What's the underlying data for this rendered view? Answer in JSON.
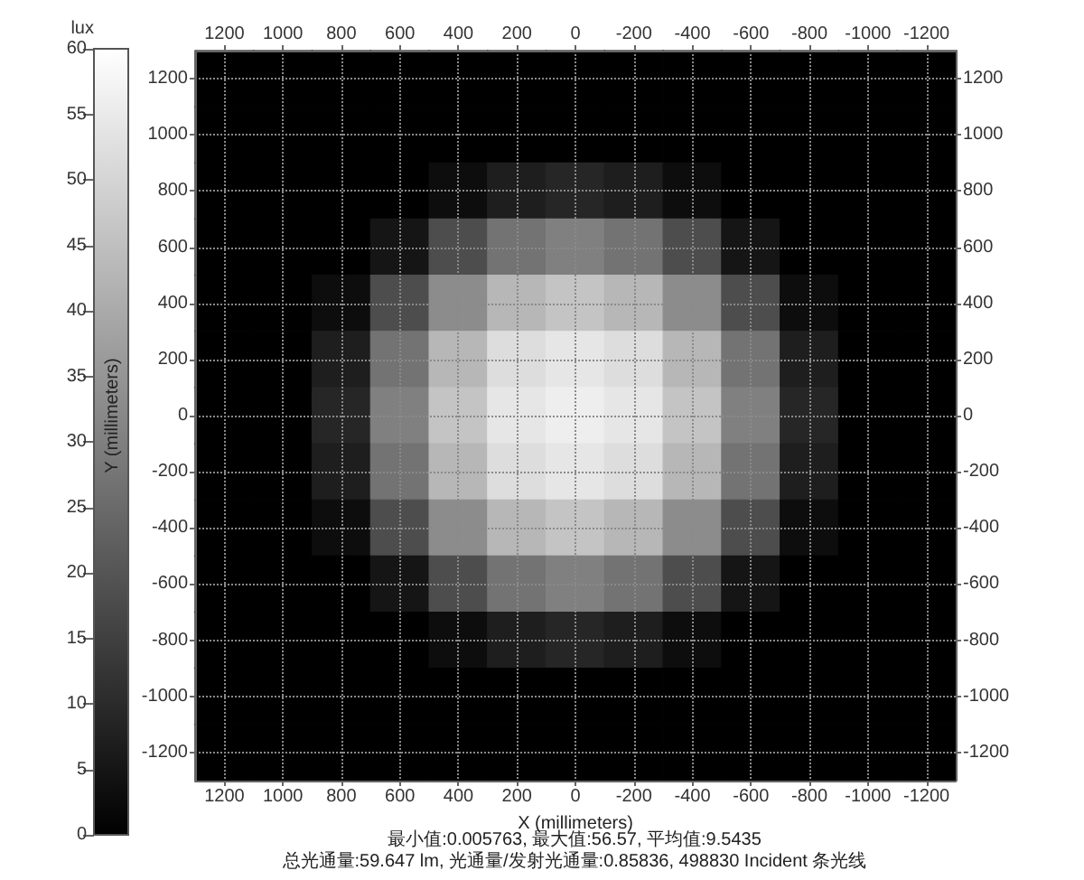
{
  "chart_data": {
    "type": "heatmap",
    "xlabel": "X (millimeters)",
    "ylabel": "Y (millimeters)",
    "clabel": "lux",
    "annotations": [
      "最小值:0.005763, 最大值:56.57, 平均值:9.5435",
      "总光通量:59.647 lm, 光通量/发射光通量:0.85836, 498830 Incident 条光线"
    ],
    "categories": [
      "1200",
      "1000",
      "800",
      "600",
      "400",
      "200",
      "0",
      "-200",
      "-400",
      "-600",
      "-800",
      "-1000",
      "-1200"
    ],
    "y_categories": [
      "1200",
      "1000",
      "800",
      "600",
      "400",
      "200",
      "0",
      "-200",
      "-400",
      "-600",
      "-800",
      "-1000",
      "-1200"
    ],
    "y2_categories": [
      "1200",
      "1000",
      "800",
      "600",
      "400",
      "200",
      "0",
      "-200",
      "-400",
      "-600",
      "-800",
      "-1000",
      "-1200"
    ],
    "clim": [
      0,
      60
    ],
    "cticks": [
      0,
      5,
      10,
      15,
      20,
      25,
      30,
      35,
      40,
      45,
      50,
      55,
      60
    ],
    "grid": true,
    "cells": [
      [
        0,
        0,
        0,
        0,
        0,
        0,
        0,
        0,
        0,
        0,
        0,
        0,
        0
      ],
      [
        0,
        0,
        0,
        0,
        0,
        0,
        0,
        0,
        0,
        0,
        0,
        0,
        0
      ],
      [
        0,
        0,
        0,
        0,
        3,
        7,
        9,
        7,
        3,
        0,
        0,
        0,
        0
      ],
      [
        0,
        0,
        0,
        5,
        18,
        27,
        30,
        27,
        18,
        5,
        0,
        0,
        0
      ],
      [
        0,
        0,
        3,
        18,
        33,
        43,
        46,
        43,
        33,
        18,
        3,
        0,
        0
      ],
      [
        0,
        0,
        7,
        27,
        43,
        52,
        54,
        52,
        43,
        27,
        7,
        0,
        0
      ],
      [
        0,
        0,
        9,
        30,
        46,
        54,
        56,
        54,
        46,
        30,
        9,
        0,
        0
      ],
      [
        0,
        0,
        7,
        27,
        43,
        52,
        54,
        52,
        43,
        27,
        7,
        0,
        0
      ],
      [
        0,
        0,
        3,
        18,
        33,
        43,
        46,
        43,
        33,
        18,
        3,
        0,
        0
      ],
      [
        0,
        0,
        0,
        5,
        18,
        27,
        30,
        27,
        18,
        5,
        0,
        0,
        0
      ],
      [
        0,
        0,
        0,
        0,
        3,
        7,
        9,
        7,
        3,
        0,
        0,
        0,
        0
      ],
      [
        0,
        0,
        0,
        0,
        0,
        0,
        0,
        0,
        0,
        0,
        0,
        0,
        0
      ],
      [
        0,
        0,
        0,
        0,
        0,
        0,
        0,
        0,
        0,
        0,
        0,
        0,
        0
      ]
    ]
  }
}
